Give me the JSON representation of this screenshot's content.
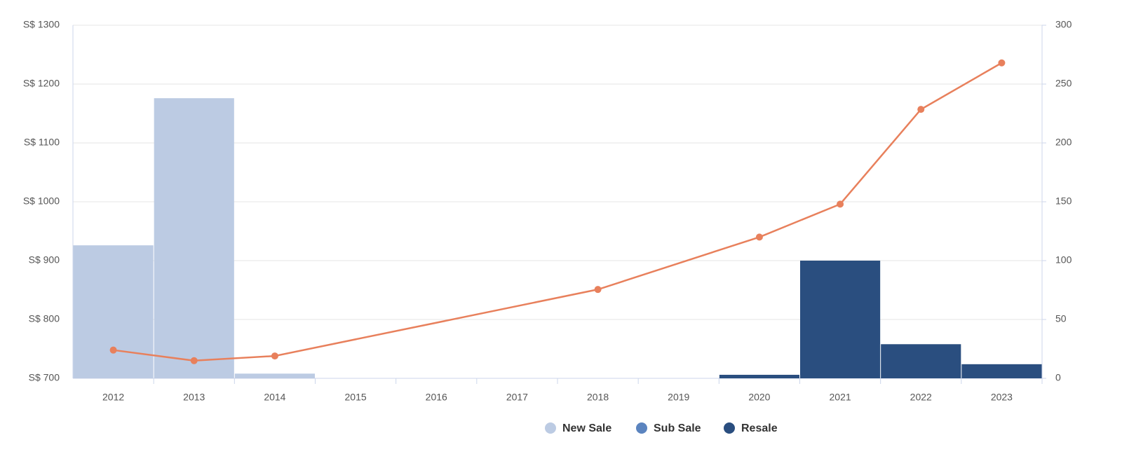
{
  "chart_data": {
    "type": "bar-line",
    "categories": [
      "2012",
      "2013",
      "2014",
      "2015",
      "2016",
      "2017",
      "2018",
      "2019",
      "2020",
      "2021",
      "2022",
      "2023"
    ],
    "series": [
      {
        "name": "New Sale",
        "color": "#bccbe3",
        "axis": "y2",
        "values": [
          113,
          238,
          4,
          null,
          null,
          null,
          null,
          null,
          null,
          null,
          null,
          null
        ]
      },
      {
        "name": "Sub Sale",
        "color": "#5b84bf",
        "axis": "y2",
        "values": [
          null,
          null,
          null,
          null,
          null,
          null,
          null,
          null,
          null,
          null,
          null,
          null
        ]
      },
      {
        "name": "Resale",
        "color": "#2a4e7f",
        "axis": "y2",
        "values": [
          null,
          null,
          null,
          null,
          null,
          null,
          null,
          null,
          3,
          100,
          29,
          12
        ]
      }
    ],
    "line": {
      "color": "#e8805c",
      "x": [
        2012,
        2013,
        2014,
        2018,
        2020,
        2021,
        2022,
        2023
      ],
      "values": [
        748,
        730,
        738,
        851,
        940,
        996,
        1157,
        1236
      ]
    },
    "ylim": [
      700,
      1300
    ],
    "yticks": [
      {
        "value": 700,
        "label": "S$ 700"
      },
      {
        "value": 800,
        "label": "S$ 800"
      },
      {
        "value": 900,
        "label": "S$ 900"
      },
      {
        "value": 1000,
        "label": "S$ 1000"
      },
      {
        "value": 1100,
        "label": "S$ 1100"
      },
      {
        "value": 1200,
        "label": "S$ 1200"
      },
      {
        "value": 1300,
        "label": "S$ 1300"
      }
    ],
    "y2lim": [
      0,
      300
    ],
    "y2ticks": [
      0,
      50,
      100,
      150,
      200,
      250,
      300
    ],
    "grid": true
  }
}
